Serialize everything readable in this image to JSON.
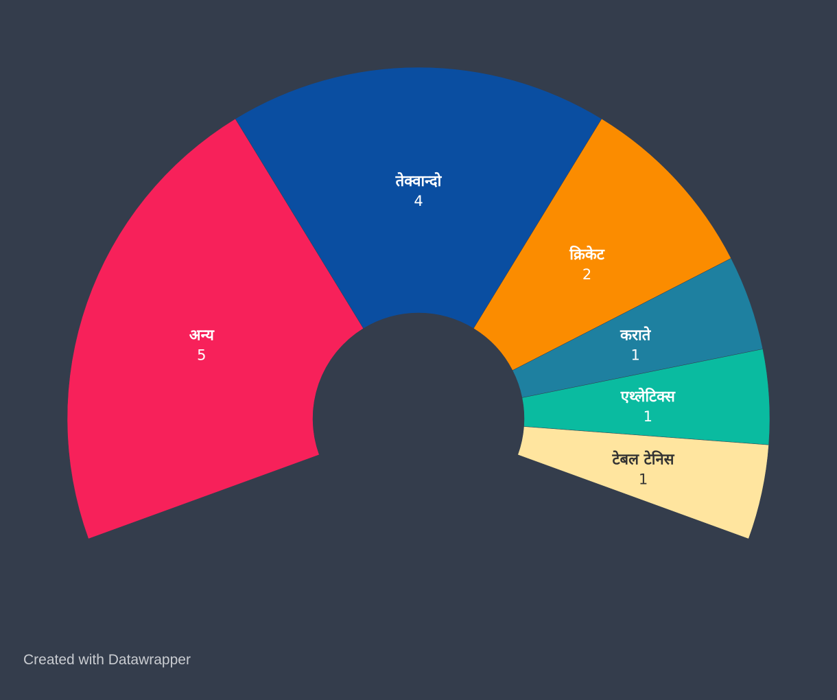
{
  "chart_data": {
    "type": "pie",
    "subtype": "semi-donut",
    "slices": [
      {
        "label": "अन्य",
        "value": 5,
        "color": "#f7215a",
        "text_color": "#ffffff"
      },
      {
        "label": "तेक्वान्दो",
        "value": 4,
        "color": "#0a4ea1",
        "text_color": "#ffffff"
      },
      {
        "label": "क्रिकेट",
        "value": 2,
        "color": "#fb8c00",
        "text_color": "#ffffff"
      },
      {
        "label": "कराते",
        "value": 1,
        "color": "#1e80a0",
        "text_color": "#ffffff"
      },
      {
        "label": "एथ्लेटिक्स",
        "value": 1,
        "color": "#0abba0",
        "text_color": "#ffffff"
      },
      {
        "label": "टेबल टेनिस",
        "value": 1,
        "color": "#ffe59f",
        "text_color": "#333333"
      }
    ],
    "background": "#343d4c"
  },
  "footer": {
    "credit": "Created with Datawrapper"
  }
}
